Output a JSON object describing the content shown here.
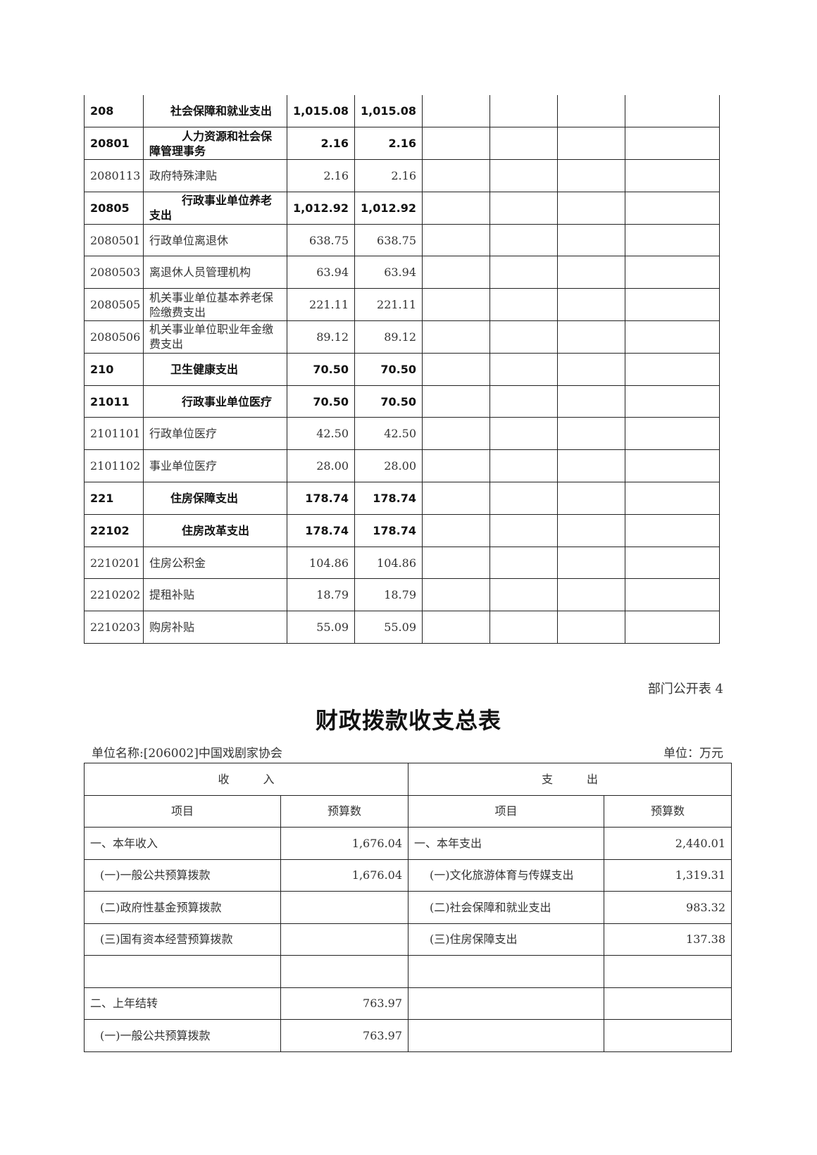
{
  "table1": {
    "rows": [
      {
        "code": "208",
        "name": "社会保障和就业支出",
        "total": "1,015.08",
        "basic": "1,015.08",
        "bold": true,
        "level": 1
      },
      {
        "code": "20801",
        "name": "人力资源和社会保障管理事务",
        "total": "2.16",
        "basic": "2.16",
        "bold": true,
        "level": 2
      },
      {
        "code": "2080113",
        "name": "政府特殊津贴",
        "total": "2.16",
        "basic": "2.16",
        "bold": false
      },
      {
        "code": "20805",
        "name": "行政事业单位养老支出",
        "total": "1,012.92",
        "basic": "1,012.92",
        "bold": true,
        "level": 2
      },
      {
        "code": "2080501",
        "name": "行政单位离退休",
        "total": "638.75",
        "basic": "638.75",
        "bold": false
      },
      {
        "code": "2080503",
        "name": "离退休人员管理机构",
        "total": "63.94",
        "basic": "63.94",
        "bold": false
      },
      {
        "code": "2080505",
        "name": "机关事业单位基本养老保险缴费支出",
        "total": "221.11",
        "basic": "221.11",
        "bold": false
      },
      {
        "code": "2080506",
        "name": "机关事业单位职业年金缴费支出",
        "total": "89.12",
        "basic": "89.12",
        "bold": false
      },
      {
        "code": "210",
        "name": "卫生健康支出",
        "total": "70.50",
        "basic": "70.50",
        "bold": true,
        "level": 1
      },
      {
        "code": "21011",
        "name": "行政事业单位医疗",
        "total": "70.50",
        "basic": "70.50",
        "bold": true,
        "level": 2
      },
      {
        "code": "2101101",
        "name": "行政单位医疗",
        "total": "42.50",
        "basic": "42.50",
        "bold": false
      },
      {
        "code": "2101102",
        "name": "事业单位医疗",
        "total": "28.00",
        "basic": "28.00",
        "bold": false
      },
      {
        "code": "221",
        "name": "住房保障支出",
        "total": "178.74",
        "basic": "178.74",
        "bold": true,
        "level": 1
      },
      {
        "code": "22102",
        "name": "住房改革支出",
        "total": "178.74",
        "basic": "178.74",
        "bold": true,
        "level": 2
      },
      {
        "code": "2210201",
        "name": "住房公积金",
        "total": "104.86",
        "basic": "104.86",
        "bold": false
      },
      {
        "code": "2210202",
        "name": "提租补贴",
        "total": "18.79",
        "basic": "18.79",
        "bold": false
      },
      {
        "code": "2210203",
        "name": "购房补贴",
        "total": "55.09",
        "basic": "55.09",
        "bold": false
      }
    ]
  },
  "table_tag": "部门公开表 4",
  "title": "财政拨款收支总表",
  "unit_name": "单位名称:[206002]中国戏剧家协会",
  "unit": "单位：万元",
  "table2": {
    "income_header": "收　　　入",
    "expense_header": "支　　　出",
    "col_item": "项目",
    "col_budget": "预算数",
    "rows": [
      {
        "in_item": "一、本年收入",
        "in_val": "1,676.04",
        "out_item": "一、本年支出",
        "out_val": "2,440.01",
        "in_sub": false,
        "out_sub": false
      },
      {
        "in_item": "(一)一般公共预算拨款",
        "in_val": "1,676.04",
        "out_item": "(一)文化旅游体育与传媒支出",
        "out_val": "1,319.31",
        "in_sub": true,
        "out_sub": true
      },
      {
        "in_item": "(二)政府性基金预算拨款",
        "in_val": "",
        "out_item": "(二)社会保障和就业支出",
        "out_val": "983.32",
        "in_sub": true,
        "out_sub": true
      },
      {
        "in_item": "(三)国有资本经营预算拨款",
        "in_val": "",
        "out_item": "(三)住房保障支出",
        "out_val": "137.38",
        "in_sub": true,
        "out_sub": true
      },
      {
        "in_item": "",
        "in_val": "",
        "out_item": "",
        "out_val": "",
        "in_sub": false,
        "out_sub": false
      },
      {
        "in_item": "二、上年结转",
        "in_val": "763.97",
        "out_item": "",
        "out_val": "",
        "in_sub": false,
        "out_sub": false
      },
      {
        "in_item": "(一)一般公共预算拨款",
        "in_val": "763.97",
        "out_item": "",
        "out_val": "",
        "in_sub": true,
        "out_sub": false
      }
    ]
  }
}
